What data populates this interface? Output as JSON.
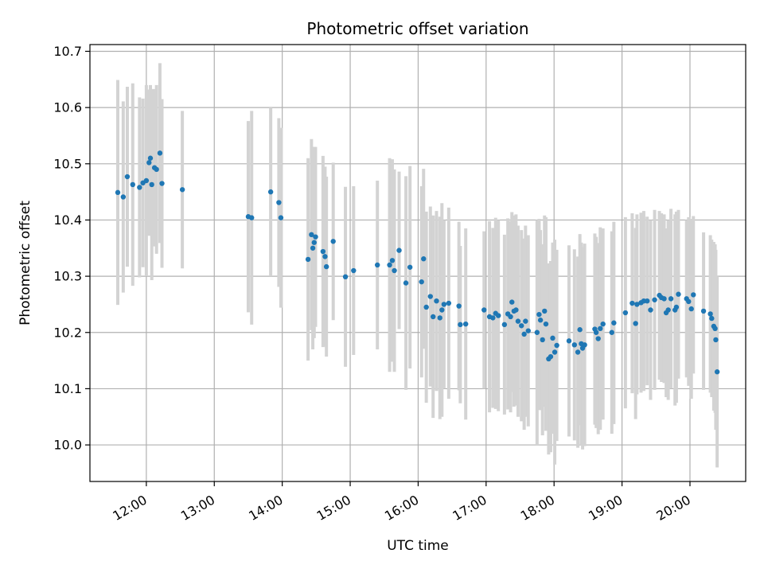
{
  "chart_data": {
    "type": "scatter",
    "title": "Photometric offset variation",
    "xlabel": "UTC time",
    "ylabel": "Photometric offset",
    "xlim": [
      11.17,
      20.82
    ],
    "ylim": [
      9.935,
      10.712
    ],
    "grid": true,
    "marker_color": "#1f77b4",
    "errorbar_color": "#d3d3d3",
    "x_ticks": [
      {
        "value": 12,
        "label": "12:00"
      },
      {
        "value": 13,
        "label": "13:00"
      },
      {
        "value": 14,
        "label": "14:00"
      },
      {
        "value": 15,
        "label": "15:00"
      },
      {
        "value": 16,
        "label": "16:00"
      },
      {
        "value": 17,
        "label": "17:00"
      },
      {
        "value": 18,
        "label": "18:00"
      },
      {
        "value": 19,
        "label": "19:00"
      },
      {
        "value": 20,
        "label": "20:00"
      }
    ],
    "y_ticks": [
      {
        "value": 10.0,
        "label": "10.0"
      },
      {
        "value": 10.1,
        "label": "10.1"
      },
      {
        "value": 10.2,
        "label": "10.2"
      },
      {
        "value": 10.3,
        "label": "10.3"
      },
      {
        "value": 10.4,
        "label": "10.4"
      },
      {
        "value": 10.5,
        "label": "10.5"
      },
      {
        "value": 10.6,
        "label": "10.6"
      },
      {
        "value": 10.7,
        "label": "10.7"
      }
    ],
    "points": [
      [
        11.58,
        10.449,
        0.2
      ],
      [
        11.66,
        10.441,
        0.17
      ],
      [
        11.72,
        10.477,
        0.16
      ],
      [
        11.8,
        10.463,
        0.18
      ],
      [
        11.9,
        10.458,
        0.16
      ],
      [
        11.95,
        10.466,
        0.15
      ],
      [
        12.0,
        10.47,
        0.17
      ],
      [
        12.04,
        10.502,
        0.13
      ],
      [
        12.06,
        10.51,
        0.13
      ],
      [
        12.08,
        10.463,
        0.17
      ],
      [
        12.12,
        10.493,
        0.14
      ],
      [
        12.15,
        10.49,
        0.15
      ],
      [
        12.2,
        10.519,
        0.16
      ],
      [
        12.23,
        10.465,
        0.15
      ],
      [
        12.53,
        10.454,
        0.14
      ],
      [
        13.5,
        10.406,
        0.17
      ],
      [
        13.55,
        10.404,
        0.19
      ],
      [
        13.83,
        10.45,
        0.15
      ],
      [
        13.95,
        10.431,
        0.15
      ],
      [
        13.98,
        10.404,
        0.16
      ],
      [
        14.38,
        10.33,
        0.18
      ],
      [
        14.43,
        10.374,
        0.17
      ],
      [
        14.45,
        10.35,
        0.18
      ],
      [
        14.47,
        10.36,
        0.17
      ],
      [
        14.49,
        10.37,
        0.16
      ],
      [
        14.6,
        10.344,
        0.17
      ],
      [
        14.63,
        10.335,
        0.16
      ],
      [
        14.65,
        10.317,
        0.16
      ],
      [
        14.75,
        10.362,
        0.14
      ],
      [
        14.93,
        10.299,
        0.16
      ],
      [
        15.05,
        10.31,
        0.15
      ],
      [
        15.4,
        10.32,
        0.15
      ],
      [
        15.58,
        10.32,
        0.19
      ],
      [
        15.62,
        10.328,
        0.18
      ],
      [
        15.65,
        10.31,
        0.18
      ],
      [
        15.72,
        10.346,
        0.14
      ],
      [
        15.82,
        10.288,
        0.19
      ],
      [
        15.88,
        10.316,
        0.18
      ],
      [
        16.05,
        10.29,
        0.17
      ],
      [
        16.08,
        10.331,
        0.16
      ],
      [
        16.12,
        10.245,
        0.17
      ],
      [
        16.18,
        10.264,
        0.16
      ],
      [
        16.22,
        10.228,
        0.18
      ],
      [
        16.27,
        10.256,
        0.16
      ],
      [
        16.32,
        10.226,
        0.18
      ],
      [
        16.35,
        10.24,
        0.19
      ],
      [
        16.38,
        10.25,
        0.15
      ],
      [
        16.45,
        10.252,
        0.17
      ],
      [
        16.6,
        10.247,
        0.15
      ],
      [
        16.62,
        10.214,
        0.14
      ],
      [
        16.7,
        10.215,
        0.17
      ],
      [
        16.97,
        10.24,
        0.14
      ],
      [
        17.05,
        10.228,
        0.17
      ],
      [
        17.1,
        10.226,
        0.16
      ],
      [
        17.14,
        10.234,
        0.17
      ],
      [
        17.18,
        10.23,
        0.17
      ],
      [
        17.27,
        10.214,
        0.16
      ],
      [
        17.32,
        10.233,
        0.17
      ],
      [
        17.36,
        10.228,
        0.17
      ],
      [
        17.38,
        10.254,
        0.16
      ],
      [
        17.41,
        10.238,
        0.17
      ],
      [
        17.44,
        10.24,
        0.17
      ],
      [
        17.47,
        10.22,
        0.17
      ],
      [
        17.52,
        10.212,
        0.17
      ],
      [
        17.56,
        10.197,
        0.17
      ],
      [
        17.58,
        10.22,
        0.17
      ],
      [
        17.62,
        10.203,
        0.17
      ],
      [
        17.75,
        10.2,
        0.2
      ],
      [
        17.78,
        10.232,
        0.17
      ],
      [
        17.8,
        10.222,
        0.16
      ],
      [
        17.83,
        10.187,
        0.17
      ],
      [
        17.86,
        10.238,
        0.17
      ],
      [
        17.88,
        10.215,
        0.19
      ],
      [
        17.92,
        10.153,
        0.17
      ],
      [
        17.95,
        10.157,
        0.17
      ],
      [
        17.98,
        10.19,
        0.17
      ],
      [
        18.01,
        10.165,
        0.2
      ],
      [
        18.04,
        10.177,
        0.17
      ],
      [
        18.22,
        10.185,
        0.17
      ],
      [
        18.3,
        10.178,
        0.17
      ],
      [
        18.35,
        10.165,
        0.17
      ],
      [
        18.38,
        10.205,
        0.17
      ],
      [
        18.4,
        10.18,
        0.18
      ],
      [
        18.42,
        10.172,
        0.18
      ],
      [
        18.45,
        10.178,
        0.18
      ],
      [
        18.6,
        10.206,
        0.17
      ],
      [
        18.62,
        10.2,
        0.17
      ],
      [
        18.65,
        10.189,
        0.17
      ],
      [
        18.68,
        10.207,
        0.18
      ],
      [
        18.72,
        10.215,
        0.17
      ],
      [
        18.85,
        10.2,
        0.18
      ],
      [
        18.88,
        10.217,
        0.18
      ],
      [
        19.05,
        10.235,
        0.17
      ],
      [
        19.15,
        10.252,
        0.16
      ],
      [
        19.2,
        10.216,
        0.17
      ],
      [
        19.22,
        10.25,
        0.16
      ],
      [
        19.28,
        10.253,
        0.16
      ],
      [
        19.32,
        10.256,
        0.16
      ],
      [
        19.37,
        10.256,
        0.15
      ],
      [
        19.42,
        10.24,
        0.16
      ],
      [
        19.48,
        10.258,
        0.16
      ],
      [
        19.55,
        10.266,
        0.15
      ],
      [
        19.58,
        10.262,
        0.15
      ],
      [
        19.62,
        10.26,
        0.15
      ],
      [
        19.65,
        10.235,
        0.15
      ],
      [
        19.68,
        10.24,
        0.16
      ],
      [
        19.72,
        10.26,
        0.16
      ],
      [
        19.78,
        10.24,
        0.17
      ],
      [
        19.8,
        10.245,
        0.17
      ],
      [
        19.83,
        10.268,
        0.15
      ],
      [
        19.95,
        10.26,
        0.14
      ],
      [
        19.98,
        10.255,
        0.15
      ],
      [
        20.02,
        10.242,
        0.16
      ],
      [
        20.05,
        10.267,
        0.14
      ],
      [
        20.2,
        10.238,
        0.14
      ],
      [
        20.3,
        10.233,
        0.14
      ],
      [
        20.32,
        10.225,
        0.14
      ],
      [
        20.35,
        10.211,
        0.15
      ],
      [
        20.37,
        10.207,
        0.15
      ],
      [
        20.38,
        10.187,
        0.16
      ],
      [
        20.4,
        10.13,
        0.17
      ]
    ]
  }
}
